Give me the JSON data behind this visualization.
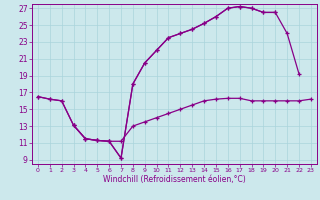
{
  "xlabel": "Windchill (Refroidissement éolien,°C)",
  "bg_color": "#cce8ec",
  "grid_color": "#aad4dc",
  "line_color": "#880088",
  "xlim_min": -0.5,
  "xlim_max": 23.5,
  "ylim_min": 8.5,
  "ylim_max": 27.5,
  "xticks": [
    0,
    1,
    2,
    3,
    4,
    5,
    6,
    7,
    8,
    9,
    10,
    11,
    12,
    13,
    14,
    15,
    16,
    17,
    18,
    19,
    20,
    21,
    22,
    23
  ],
  "yticks": [
    9,
    11,
    13,
    15,
    17,
    19,
    21,
    23,
    25,
    27
  ],
  "curve_top_x": [
    0,
    1,
    2,
    3,
    4,
    5,
    6,
    7,
    8,
    9,
    10,
    11,
    12,
    13,
    14,
    15,
    16,
    17,
    18,
    19,
    20,
    21,
    22
  ],
  "curve_top_y": [
    16.5,
    16.2,
    16.0,
    13.1,
    11.5,
    11.3,
    11.2,
    9.2,
    18.0,
    20.5,
    22.0,
    23.5,
    24.0,
    24.5,
    25.2,
    26.0,
    27.0,
    27.2,
    27.0,
    26.5,
    26.5,
    24.0,
    19.2
  ],
  "curve_mid_x": [
    0,
    1,
    2,
    3,
    4,
    5,
    6,
    7,
    8,
    9,
    10,
    11,
    12,
    13,
    14,
    15,
    16,
    17,
    18,
    19,
    20,
    21,
    22,
    23
  ],
  "curve_mid_y": [
    16.5,
    16.2,
    16.0,
    13.1,
    11.5,
    11.3,
    11.2,
    11.2,
    13.0,
    13.5,
    14.0,
    14.5,
    15.0,
    15.5,
    16.0,
    16.2,
    16.3,
    16.3,
    16.0,
    16.0,
    16.0,
    16.0,
    16.0,
    16.2
  ],
  "curve_seg_x": [
    3,
    4,
    5,
    6,
    7,
    8,
    9,
    10,
    11,
    12,
    13,
    14,
    15,
    16,
    17,
    18,
    19,
    20
  ],
  "curve_seg_y": [
    13.1,
    11.5,
    11.3,
    11.2,
    9.2,
    18.0,
    20.5,
    22.0,
    23.5,
    24.0,
    24.5,
    25.2,
    26.0,
    27.0,
    27.2,
    27.0,
    26.5,
    26.5
  ]
}
